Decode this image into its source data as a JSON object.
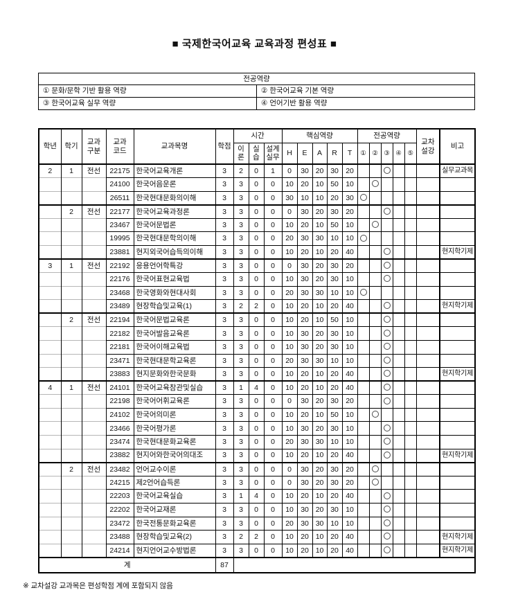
{
  "title": "■ 국제한국어교육 교육과정 편성표 ■",
  "competency_legend": {
    "title": "전공역량",
    "items": [
      {
        "label": "① 문화/문학 기반 활용 역량"
      },
      {
        "label": "② 한국어교육 기본 역량"
      },
      {
        "label": "③ 한국어교육 실무 역량"
      },
      {
        "label": "④ 언어기반 활용 역량"
      }
    ]
  },
  "table": {
    "header": {
      "year": "학년",
      "semester": "학기",
      "course_type": "교과\n구분",
      "course_code": "교과\n코드",
      "course_name": "교과목명",
      "credits": "학점",
      "hours_group": "시간",
      "theory": "이\n론",
      "practice": "실\n습",
      "design": "설계\n실무",
      "core_group": "핵심역량",
      "core": [
        "H",
        "E",
        "A",
        "R",
        "T"
      ],
      "major_group": "전공역량",
      "major": [
        "①",
        "②",
        "③",
        "④",
        "⑤"
      ],
      "cross": "교차\n설강",
      "remark": "비고"
    },
    "rows": [
      {
        "year": "2",
        "sem": "1",
        "type": "전선",
        "code": "22175",
        "name": "한국어교육개론",
        "cr": "3",
        "th": "2",
        "pr": "0",
        "ds": "1",
        "H": "0",
        "E": "30",
        "A": "20",
        "R": "30",
        "T": "20",
        "comp": 3,
        "remark": "실무교과목",
        "gs": true
      },
      {
        "year": "",
        "sem": "",
        "type": "",
        "code": "24100",
        "name": "한국어음운론",
        "cr": "3",
        "th": "3",
        "pr": "0",
        "ds": "0",
        "H": "10",
        "E": "20",
        "A": "10",
        "R": "50",
        "T": "10",
        "comp": 2,
        "remark": "",
        "gs": false
      },
      {
        "year": "",
        "sem": "",
        "type": "",
        "code": "26511",
        "name": "한국현대문화의이해",
        "cr": "3",
        "th": "3",
        "pr": "0",
        "ds": "0",
        "H": "30",
        "E": "10",
        "A": "10",
        "R": "20",
        "T": "30",
        "comp": 1,
        "remark": "",
        "gs": false
      },
      {
        "year": "",
        "sem": "2",
        "type": "전선",
        "code": "22177",
        "name": "한국어교육과정론",
        "cr": "3",
        "th": "3",
        "pr": "0",
        "ds": "0",
        "H": "0",
        "E": "30",
        "A": "20",
        "R": "30",
        "T": "20",
        "comp": 3,
        "remark": "",
        "gs": true
      },
      {
        "year": "",
        "sem": "",
        "type": "",
        "code": "23467",
        "name": "한국어문법론",
        "cr": "3",
        "th": "3",
        "pr": "0",
        "ds": "0",
        "H": "10",
        "E": "20",
        "A": "10",
        "R": "50",
        "T": "10",
        "comp": 2,
        "remark": "",
        "gs": false
      },
      {
        "year": "",
        "sem": "",
        "type": "",
        "code": "19995",
        "name": "한국현대문학의이해",
        "cr": "3",
        "th": "3",
        "pr": "0",
        "ds": "0",
        "H": "20",
        "E": "30",
        "A": "30",
        "R": "10",
        "T": "10",
        "comp": 1,
        "remark": "",
        "gs": false
      },
      {
        "year": "",
        "sem": "",
        "type": "",
        "code": "23881",
        "name": "현지외국어습득의이해",
        "cr": "3",
        "th": "3",
        "pr": "0",
        "ds": "0",
        "H": "10",
        "E": "20",
        "A": "10",
        "R": "20",
        "T": "40",
        "comp": 3,
        "remark": "현지학기제",
        "gs": false
      },
      {
        "year": "3",
        "sem": "1",
        "type": "전선",
        "code": "22192",
        "name": "응용언어학특강",
        "cr": "3",
        "th": "3",
        "pr": "0",
        "ds": "0",
        "H": "0",
        "E": "30",
        "A": "20",
        "R": "30",
        "T": "20",
        "comp": 3,
        "remark": "",
        "gs": true
      },
      {
        "year": "",
        "sem": "",
        "type": "",
        "code": "22176",
        "name": "한국어표현교육법",
        "cr": "3",
        "th": "3",
        "pr": "0",
        "ds": "0",
        "H": "10",
        "E": "30",
        "A": "20",
        "R": "30",
        "T": "10",
        "comp": 3,
        "remark": "",
        "gs": false
      },
      {
        "year": "",
        "sem": "",
        "type": "",
        "code": "23468",
        "name": "한국영화와현대사회",
        "cr": "3",
        "th": "3",
        "pr": "0",
        "ds": "0",
        "H": "20",
        "E": "30",
        "A": "30",
        "R": "10",
        "T": "10",
        "comp": 1,
        "remark": "",
        "gs": false
      },
      {
        "year": "",
        "sem": "",
        "type": "",
        "code": "23489",
        "name": "현장학습및교육(1)",
        "cr": "3",
        "th": "2",
        "pr": "2",
        "ds": "0",
        "H": "10",
        "E": "20",
        "A": "10",
        "R": "20",
        "T": "40",
        "comp": 3,
        "remark": "현지학기제",
        "gs": false
      },
      {
        "year": "",
        "sem": "2",
        "type": "전선",
        "code": "22194",
        "name": "한국어문법교육론",
        "cr": "3",
        "th": "3",
        "pr": "0",
        "ds": "0",
        "H": "10",
        "E": "20",
        "A": "10",
        "R": "50",
        "T": "10",
        "comp": 3,
        "remark": "",
        "gs": true
      },
      {
        "year": "",
        "sem": "",
        "type": "",
        "code": "22182",
        "name": "한국어발음교육론",
        "cr": "3",
        "th": "3",
        "pr": "0",
        "ds": "0",
        "H": "10",
        "E": "30",
        "A": "20",
        "R": "30",
        "T": "10",
        "comp": 3,
        "remark": "",
        "gs": false
      },
      {
        "year": "",
        "sem": "",
        "type": "",
        "code": "22181",
        "name": "한국어이해교육법",
        "cr": "3",
        "th": "3",
        "pr": "0",
        "ds": "0",
        "H": "10",
        "E": "30",
        "A": "20",
        "R": "30",
        "T": "10",
        "comp": 3,
        "remark": "",
        "gs": false
      },
      {
        "year": "",
        "sem": "",
        "type": "",
        "code": "23471",
        "name": "한국현대문학교육론",
        "cr": "3",
        "th": "3",
        "pr": "0",
        "ds": "0",
        "H": "20",
        "E": "30",
        "A": "30",
        "R": "10",
        "T": "10",
        "comp": 3,
        "remark": "",
        "gs": false
      },
      {
        "year": "",
        "sem": "",
        "type": "",
        "code": "23883",
        "name": "현지문화와한국문화",
        "cr": "3",
        "th": "3",
        "pr": "0",
        "ds": "0",
        "H": "10",
        "E": "20",
        "A": "10",
        "R": "20",
        "T": "40",
        "comp": 3,
        "remark": "현지학기제",
        "gs": false
      },
      {
        "year": "4",
        "sem": "1",
        "type": "전선",
        "code": "24101",
        "name": "한국어교육참관및실습",
        "cr": "3",
        "th": "1",
        "pr": "4",
        "ds": "0",
        "H": "10",
        "E": "20",
        "A": "10",
        "R": "20",
        "T": "40",
        "comp": 3,
        "remark": "",
        "gs": true
      },
      {
        "year": "",
        "sem": "",
        "type": "",
        "code": "22198",
        "name": "한국어어휘교육론",
        "cr": "3",
        "th": "3",
        "pr": "0",
        "ds": "0",
        "H": "0",
        "E": "30",
        "A": "20",
        "R": "30",
        "T": "20",
        "comp": 3,
        "remark": "",
        "gs": false
      },
      {
        "year": "",
        "sem": "",
        "type": "",
        "code": "24102",
        "name": "한국어의미론",
        "cr": "3",
        "th": "3",
        "pr": "0",
        "ds": "0",
        "H": "10",
        "E": "20",
        "A": "10",
        "R": "50",
        "T": "10",
        "comp": 2,
        "remark": "",
        "gs": false
      },
      {
        "year": "",
        "sem": "",
        "type": "",
        "code": "23466",
        "name": "한국어평가론",
        "cr": "3",
        "th": "3",
        "pr": "0",
        "ds": "0",
        "H": "10",
        "E": "30",
        "A": "20",
        "R": "30",
        "T": "10",
        "comp": 3,
        "remark": "",
        "gs": false
      },
      {
        "year": "",
        "sem": "",
        "type": "",
        "code": "23474",
        "name": "한국현대문화교육론",
        "cr": "3",
        "th": "3",
        "pr": "0",
        "ds": "0",
        "H": "20",
        "E": "30",
        "A": "30",
        "R": "10",
        "T": "10",
        "comp": 3,
        "remark": "",
        "gs": false
      },
      {
        "year": "",
        "sem": "",
        "type": "",
        "code": "23882",
        "name": "현지어와한국어의대조",
        "cr": "3",
        "th": "3",
        "pr": "0",
        "ds": "0",
        "H": "10",
        "E": "20",
        "A": "10",
        "R": "20",
        "T": "40",
        "comp": 3,
        "remark": "현지학기제",
        "gs": false
      },
      {
        "year": "",
        "sem": "2",
        "type": "전선",
        "code": "23482",
        "name": "언어교수이론",
        "cr": "3",
        "th": "3",
        "pr": "0",
        "ds": "0",
        "H": "0",
        "E": "30",
        "A": "20",
        "R": "30",
        "T": "20",
        "comp": 2,
        "remark": "",
        "gs": true
      },
      {
        "year": "",
        "sem": "",
        "type": "",
        "code": "24215",
        "name": "제2언어습득론",
        "cr": "3",
        "th": "3",
        "pr": "0",
        "ds": "0",
        "H": "0",
        "E": "30",
        "A": "20",
        "R": "30",
        "T": "20",
        "comp": 2,
        "remark": "",
        "gs": false
      },
      {
        "year": "",
        "sem": "",
        "type": "",
        "code": "22203",
        "name": "한국어교육실습",
        "cr": "3",
        "th": "1",
        "pr": "4",
        "ds": "0",
        "H": "10",
        "E": "20",
        "A": "10",
        "R": "20",
        "T": "40",
        "comp": 3,
        "remark": "",
        "gs": false
      },
      {
        "year": "",
        "sem": "",
        "type": "",
        "code": "22202",
        "name": "한국어교재론",
        "cr": "3",
        "th": "3",
        "pr": "0",
        "ds": "0",
        "H": "10",
        "E": "30",
        "A": "20",
        "R": "30",
        "T": "10",
        "comp": 3,
        "remark": "",
        "gs": false
      },
      {
        "year": "",
        "sem": "",
        "type": "",
        "code": "23472",
        "name": "한국전통문화교육론",
        "cr": "3",
        "th": "3",
        "pr": "0",
        "ds": "0",
        "H": "20",
        "E": "30",
        "A": "30",
        "R": "10",
        "T": "10",
        "comp": 3,
        "remark": "",
        "gs": false
      },
      {
        "year": "",
        "sem": "",
        "type": "",
        "code": "23488",
        "name": "현장학습및교육(2)",
        "cr": "3",
        "th": "2",
        "pr": "2",
        "ds": "0",
        "H": "10",
        "E": "20",
        "A": "10",
        "R": "20",
        "T": "40",
        "comp": 3,
        "remark": "현지학기제",
        "gs": false
      },
      {
        "year": "",
        "sem": "",
        "type": "",
        "code": "24214",
        "name": "현지언어교수방법론",
        "cr": "3",
        "th": "3",
        "pr": "0",
        "ds": "0",
        "H": "10",
        "E": "20",
        "A": "10",
        "R": "20",
        "T": "40",
        "comp": 3,
        "remark": "현지학기제",
        "gs": false
      }
    ],
    "total": {
      "label": "계",
      "credits": "87"
    }
  },
  "footnote": "※ 교차설강 교과목은 편성학점 계에 포함되지 않음"
}
